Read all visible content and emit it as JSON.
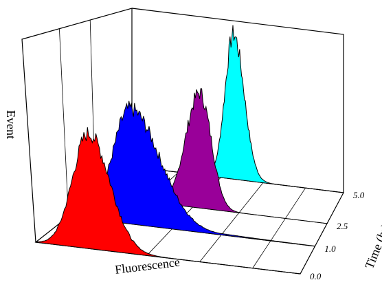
{
  "chart_data": {
    "type": "area",
    "title": "",
    "xlabel": "Fluorescence",
    "ylabel": "Event",
    "zlabel": "Time (hr)",
    "z_ticks": [
      "0.0",
      "1.0",
      "2.5",
      "5.0"
    ],
    "grid": true,
    "series": [
      {
        "name": "",
        "time": "0.0",
        "color": "#ff0000",
        "peak_position": 0.2,
        "width_left": 0.06,
        "width_right": 0.08,
        "tail": 0.0,
        "height": 0.62
      },
      {
        "name": "",
        "time": "1.0",
        "color": "#0000ff",
        "peak_position": 0.25,
        "width_left": 0.07,
        "width_right": 0.12,
        "tail": 0.55,
        "height": 0.62
      },
      {
        "name": "",
        "time": "2.5",
        "color": "#990099",
        "peak_position": 0.45,
        "width_left": 0.06,
        "width_right": 0.05,
        "tail": 0.0,
        "height": 0.62
      },
      {
        "name": "",
        "time": "5.0",
        "color": "#00ffff",
        "peak_position": 0.48,
        "width_left": 0.04,
        "width_right": 0.05,
        "tail": 0.0,
        "height": 0.78
      }
    ]
  }
}
